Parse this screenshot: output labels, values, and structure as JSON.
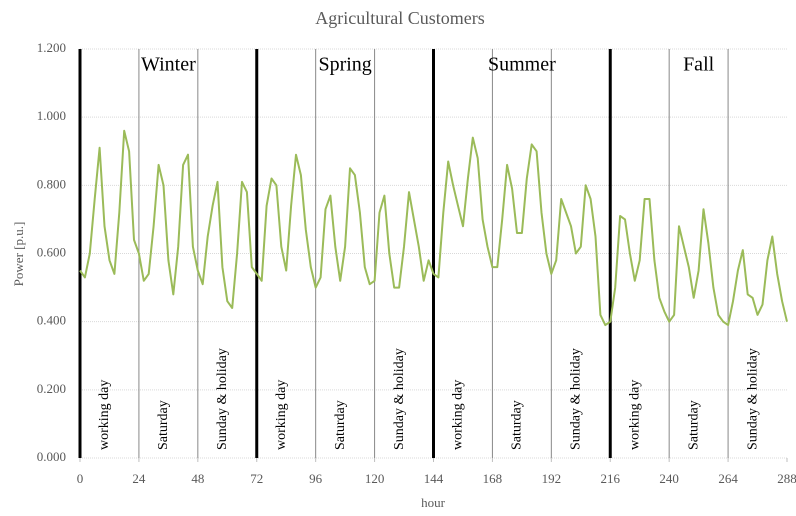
{
  "chart_data": {
    "type": "line",
    "title": "Agricultural Customers",
    "x_label": "hour",
    "y_label": "Power [p.u.]",
    "xlim": [
      0,
      288
    ],
    "xticks": [
      0,
      24,
      48,
      72,
      96,
      120,
      144,
      168,
      192,
      216,
      240,
      264,
      288
    ],
    "ylim": [
      0,
      1.2
    ],
    "yticks": [
      {
        "value": 0,
        "label": "0.000"
      },
      {
        "value": 0.2,
        "label": "0.200"
      },
      {
        "value": 0.4,
        "label": "0.400"
      },
      {
        "value": 0.6,
        "label": "0.600"
      },
      {
        "value": 0.8,
        "label": "0.800"
      },
      {
        "value": 1.0,
        "label": "1.000"
      },
      {
        "value": 1.2,
        "label": "1.200"
      }
    ],
    "grid": true,
    "seasons": [
      "Winter",
      "Spring",
      "Summer",
      "Fall"
    ],
    "day_types": [
      "working day",
      "Saturday",
      "Sunday & holiday"
    ],
    "major_lines": [
      0,
      72,
      144,
      216
    ],
    "minor_lines": [
      24,
      48,
      96,
      120,
      168,
      192,
      240,
      264
    ],
    "x": [
      0,
      2,
      4,
      6,
      8,
      10,
      12,
      14,
      16,
      18,
      20,
      22,
      24,
      26,
      28,
      30,
      32,
      34,
      36,
      38,
      40,
      42,
      44,
      46,
      48,
      50,
      52,
      54,
      56,
      58,
      60,
      62,
      64,
      66,
      68,
      70,
      72,
      74,
      76,
      78,
      80,
      82,
      84,
      86,
      88,
      90,
      92,
      94,
      96,
      98,
      100,
      102,
      104,
      106,
      108,
      110,
      112,
      114,
      116,
      118,
      120,
      122,
      124,
      126,
      128,
      130,
      132,
      134,
      136,
      138,
      140,
      142,
      144,
      146,
      148,
      150,
      152,
      154,
      156,
      158,
      160,
      162,
      164,
      166,
      168,
      170,
      172,
      174,
      176,
      178,
      180,
      182,
      184,
      186,
      188,
      190,
      192,
      194,
      196,
      198,
      200,
      202,
      204,
      206,
      208,
      210,
      212,
      214,
      216,
      218,
      220,
      222,
      224,
      226,
      228,
      230,
      232,
      234,
      236,
      238,
      240,
      242,
      244,
      246,
      248,
      250,
      252,
      254,
      256,
      258,
      260,
      262,
      264,
      266,
      268,
      270,
      272,
      274,
      276,
      278,
      280,
      282,
      284,
      286,
      288
    ],
    "series": [
      {
        "name": "Agricultural Customers",
        "color": "#9bbb59",
        "values": [
          0.55,
          0.53,
          0.6,
          0.76,
          0.91,
          0.68,
          0.58,
          0.54,
          0.72,
          0.96,
          0.9,
          0.64,
          0.6,
          0.52,
          0.54,
          0.68,
          0.86,
          0.8,
          0.58,
          0.48,
          0.62,
          0.86,
          0.89,
          0.62,
          0.55,
          0.51,
          0.65,
          0.74,
          0.81,
          0.56,
          0.46,
          0.44,
          0.6,
          0.81,
          0.78,
          0.56,
          0.54,
          0.52,
          0.74,
          0.82,
          0.8,
          0.62,
          0.55,
          0.74,
          0.89,
          0.83,
          0.67,
          0.56,
          0.5,
          0.53,
          0.73,
          0.77,
          0.62,
          0.52,
          0.62,
          0.85,
          0.83,
          0.72,
          0.56,
          0.51,
          0.52,
          0.72,
          0.77,
          0.6,
          0.5,
          0.5,
          0.62,
          0.78,
          0.7,
          0.62,
          0.52,
          0.58,
          0.54,
          0.53,
          0.72,
          0.87,
          0.8,
          0.74,
          0.68,
          0.82,
          0.94,
          0.88,
          0.7,
          0.62,
          0.56,
          0.56,
          0.7,
          0.86,
          0.79,
          0.66,
          0.66,
          0.82,
          0.92,
          0.9,
          0.72,
          0.6,
          0.54,
          0.58,
          0.76,
          0.72,
          0.68,
          0.6,
          0.62,
          0.8,
          0.76,
          0.65,
          0.42,
          0.39,
          0.4,
          0.5,
          0.71,
          0.7,
          0.6,
          0.52,
          0.58,
          0.76,
          0.76,
          0.58,
          0.47,
          0.43,
          0.4,
          0.42,
          0.68,
          0.62,
          0.56,
          0.47,
          0.55,
          0.73,
          0.63,
          0.5,
          0.42,
          0.4,
          0.39,
          0.46,
          0.55,
          0.61,
          0.48,
          0.47,
          0.42,
          0.45,
          0.58,
          0.65,
          0.54,
          0.46,
          0.4
        ]
      }
    ]
  }
}
